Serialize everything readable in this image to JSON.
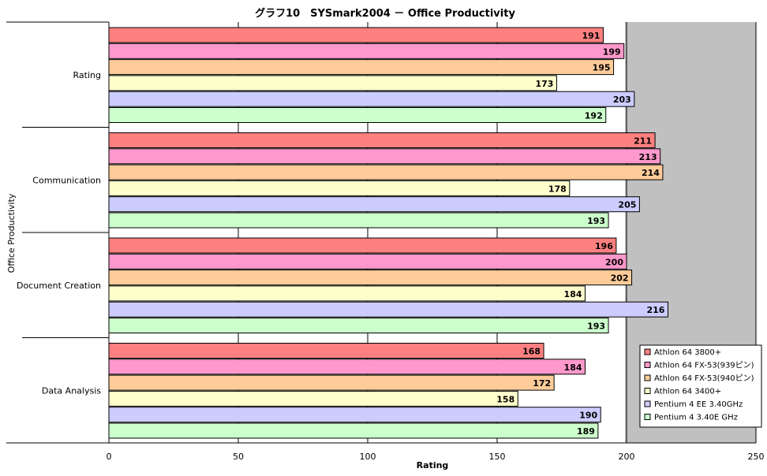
{
  "chart_data": {
    "type": "bar",
    "orientation": "horizontal",
    "title": "グラフ10　SYSmark2004 － Office Productivity",
    "xlabel": "Rating",
    "ylabel": "Office Productivity",
    "xlim": [
      0,
      250
    ],
    "xticks": [
      0,
      50,
      100,
      150,
      200,
      250
    ],
    "grid": true,
    "legend": "bottom-right",
    "categories": [
      "Rating",
      "Communication",
      "Document Creation",
      "Data Analysis"
    ],
    "series": [
      {
        "name": "Athlon 64 3800+",
        "color": "#ff8080",
        "values": [
          191,
          211,
          196,
          168
        ]
      },
      {
        "name": "Athlon 64 FX-53(939ピン)",
        "color": "#ff99cc",
        "values": [
          199,
          213,
          200,
          184
        ]
      },
      {
        "name": "Athlon 64 FX-53(940ピン)",
        "color": "#ffcc99",
        "values": [
          195,
          214,
          202,
          172
        ]
      },
      {
        "name": "Athlon 64 3400+",
        "color": "#ffffcc",
        "values": [
          173,
          178,
          184,
          158
        ]
      },
      {
        "name": "Pentium 4 EE 3.40GHz",
        "color": "#ccccff",
        "values": [
          203,
          205,
          216,
          190
        ]
      },
      {
        "name": "Pentium 4 3.40E GHz",
        "color": "#ccffcc",
        "values": [
          192,
          193,
          193,
          189
        ]
      }
    ]
  }
}
